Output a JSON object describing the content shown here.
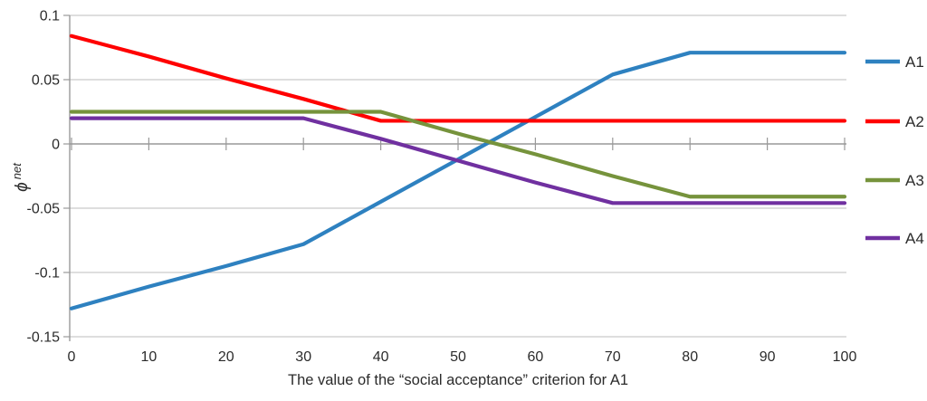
{
  "chart_data": {
    "type": "line",
    "title": "",
    "xlabel": "The value of the “social acceptance” criterion for A1",
    "ylabel": "ϕ net",
    "ylabel_symbol": "ϕ",
    "ylabel_sup": "net",
    "x": [
      0,
      10,
      20,
      30,
      40,
      50,
      60,
      70,
      80,
      90,
      100
    ],
    "xtick_labels": [
      "0",
      "10",
      "20",
      "30",
      "40",
      "50",
      "60",
      "70",
      "80",
      "90",
      "100"
    ],
    "xlim": [
      0,
      100
    ],
    "ylim": [
      -0.15,
      0.1
    ],
    "yticks": [
      0.1,
      0.05,
      0,
      -0.05,
      -0.1,
      -0.15
    ],
    "ytick_labels": [
      "0.1",
      "0.05",
      "0",
      "-0.05",
      "-0.1",
      "-0.15"
    ],
    "grid": true,
    "legend_position": "right",
    "series": [
      {
        "name": "A1",
        "color": "#2E81C0",
        "values": [
          -0.128,
          -0.111,
          -0.095,
          -0.078,
          -0.045,
          -0.012,
          0.021,
          0.054,
          0.071,
          0.071,
          0.071
        ]
      },
      {
        "name": "A2",
        "color": "#FF0000",
        "values": [
          0.084,
          0.068,
          0.051,
          0.035,
          0.018,
          0.018,
          0.018,
          0.018,
          0.018,
          0.018,
          0.018
        ]
      },
      {
        "name": "A3",
        "color": "#76933C",
        "values": [
          0.025,
          0.025,
          0.025,
          0.025,
          0.025,
          0.008,
          -0.008,
          -0.025,
          -0.041,
          -0.041,
          -0.041
        ]
      },
      {
        "name": "A4",
        "color": "#7030A0",
        "values": [
          0.02,
          0.02,
          0.02,
          0.02,
          0.004,
          -0.013,
          -0.03,
          -0.046,
          -0.046,
          -0.046,
          -0.046
        ]
      }
    ],
    "colors": {
      "gridline": "#C9C9C9",
      "axis": "#999999",
      "text": "#2B2B2B"
    }
  }
}
